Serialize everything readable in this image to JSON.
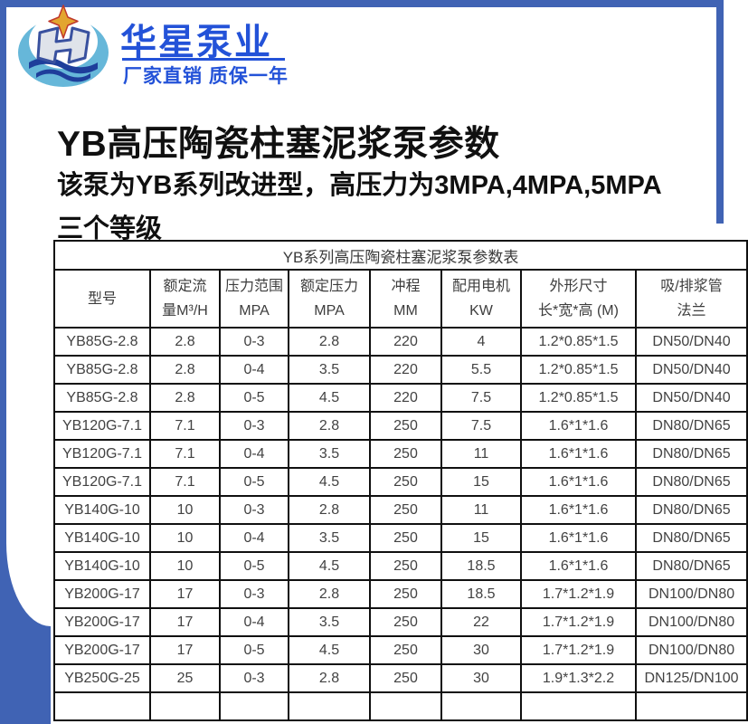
{
  "frame_color": "#4063b4",
  "brand": {
    "name": "华星泵业",
    "tagline": "厂家直销 质保一年",
    "text_color": "#2352d8",
    "logo_colors": {
      "wing_blue": "#66b7d9",
      "wave_navy": "#1e3e9b",
      "emblem_fill": "#dfe3ea",
      "emblem_stroke": "#39519f",
      "star_gold": "#e3a52f",
      "star_edge": "#c0392b"
    }
  },
  "heading": {
    "title": "YB高压陶瓷柱塞泥浆泵参数",
    "subtitle_line1": "该泵为YB系列改进型，高压力为3MPA,4MPA,5MPA",
    "subtitle_line2": "三个等级"
  },
  "table": {
    "caption": "YB系列高压陶瓷柱塞泥浆泵参数表",
    "columns": [
      {
        "line1": "型号",
        "line2": ""
      },
      {
        "line1": "额定流",
        "line2": "量M³/H"
      },
      {
        "line1": "压力范围",
        "line2": "MPA"
      },
      {
        "line1": "额定压力",
        "line2": "MPA"
      },
      {
        "line1": "冲程",
        "line2": "MM"
      },
      {
        "line1": "配用电机",
        "line2": "KW"
      },
      {
        "line1": "外形尺寸",
        "line2": "长*宽*高 (M)"
      },
      {
        "line1": "吸/排浆管",
        "line2": "法兰"
      }
    ],
    "rows": [
      [
        "YB85G-2.8",
        "2.8",
        "0-3",
        "2.8",
        "220",
        "4",
        "1.2*0.85*1.5",
        "DN50/DN40"
      ],
      [
        "YB85G-2.8",
        "2.8",
        "0-4",
        "3.5",
        "220",
        "5.5",
        "1.2*0.85*1.5",
        "DN50/DN40"
      ],
      [
        "YB85G-2.8",
        "2.8",
        "0-5",
        "4.5",
        "220",
        "7.5",
        "1.2*0.85*1.5",
        "DN50/DN40"
      ],
      [
        "YB120G-7.1",
        "7.1",
        "0-3",
        "2.8",
        "250",
        "7.5",
        "1.6*1*1.6",
        "DN80/DN65"
      ],
      [
        "YB120G-7.1",
        "7.1",
        "0-4",
        "3.5",
        "250",
        "11",
        "1.6*1*1.6",
        "DN80/DN65"
      ],
      [
        "YB120G-7.1",
        "7.1",
        "0-5",
        "4.5",
        "250",
        "15",
        "1.6*1*1.6",
        "DN80/DN65"
      ],
      [
        "YB140G-10",
        "10",
        "0-3",
        "2.8",
        "250",
        "11",
        "1.6*1*1.6",
        "DN80/DN65"
      ],
      [
        "YB140G-10",
        "10",
        "0-4",
        "3.5",
        "250",
        "15",
        "1.6*1*1.6",
        "DN80/DN65"
      ],
      [
        "YB140G-10",
        "10",
        "0-5",
        "4.5",
        "250",
        "18.5",
        "1.6*1*1.6",
        "DN80/DN65"
      ],
      [
        "YB200G-17",
        "17",
        "0-3",
        "2.8",
        "250",
        "18.5",
        "1.7*1.2*1.9",
        "DN100/DN80"
      ],
      [
        "YB200G-17",
        "17",
        "0-4",
        "3.5",
        "250",
        "22",
        "1.7*1.2*1.9",
        "DN100/DN80"
      ],
      [
        "YB200G-17",
        "17",
        "0-5",
        "4.5",
        "250",
        "30",
        "1.7*1.2*1.9",
        "DN100/DN80"
      ],
      [
        "YB250G-25",
        "25",
        "0-3",
        "2.8",
        "250",
        "30",
        "1.9*1.3*2.2",
        "DN125/DN100"
      ]
    ]
  }
}
